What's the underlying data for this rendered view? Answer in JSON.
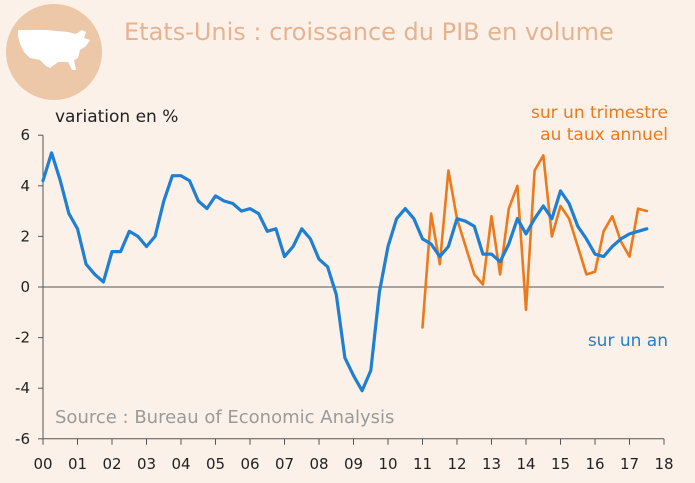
{
  "title": "Etats-Unis : croissance du PIB en volume",
  "icon": "usa-map-icon",
  "colors": {
    "annual": "#1f7fd2",
    "quarterly": "#ec7a1c",
    "background": "#fbf1e8",
    "title": "#e6b391",
    "circle": "#ecc7a8"
  },
  "chart_data": {
    "type": "line",
    "ylabel": "variation en %",
    "source": "Source : Bureau of Economic Analysis",
    "ylim": [
      -6,
      6
    ],
    "yticks": [
      "6",
      "4",
      "2",
      "0",
      "-2",
      "-4",
      "-6"
    ],
    "xlim": [
      0,
      18
    ],
    "xticks": [
      "00",
      "01",
      "02",
      "03",
      "04",
      "05",
      "06",
      "07",
      "08",
      "09",
      "10",
      "11",
      "12",
      "13",
      "14",
      "15",
      "16",
      "17",
      "18"
    ],
    "grid": false,
    "series": [
      {
        "name": "sur un an",
        "values": [
          4.2,
          5.3,
          4.2,
          2.9,
          2.3,
          0.9,
          0.5,
          0.2,
          1.4,
          1.4,
          2.2,
          2.0,
          1.6,
          2.0,
          3.4,
          4.4,
          4.4,
          4.2,
          3.4,
          3.1,
          3.6,
          3.4,
          3.3,
          3.0,
          3.1,
          2.9,
          2.2,
          2.3,
          1.2,
          1.6,
          2.3,
          1.9,
          1.1,
          0.8,
          -0.3,
          -2.8,
          -3.5,
          -4.1,
          -3.3,
          -0.2,
          1.6,
          2.7,
          3.1,
          2.7,
          1.9,
          1.7,
          1.2,
          1.6,
          2.7,
          2.6,
          2.4,
          1.3,
          1.3,
          1.0,
          1.7,
          2.7,
          2.1,
          2.7,
          3.2,
          2.7,
          3.8,
          3.3,
          2.4,
          1.9,
          1.3,
          1.2,
          1.6,
          1.9,
          2.1,
          2.2,
          2.3
        ]
      },
      {
        "name": "sur un trimestre au taux annuel",
        "values": [
          -1.6,
          2.9,
          0.9,
          4.6,
          2.7,
          1.6,
          0.5,
          0.1,
          2.8,
          0.5,
          3.1,
          4.0,
          -0.9,
          4.6,
          5.2,
          2.0,
          3.2,
          2.7,
          1.6,
          0.5,
          0.6,
          2.2,
          2.8,
          1.8,
          1.2,
          3.1,
          3.0
        ]
      }
    ]
  }
}
